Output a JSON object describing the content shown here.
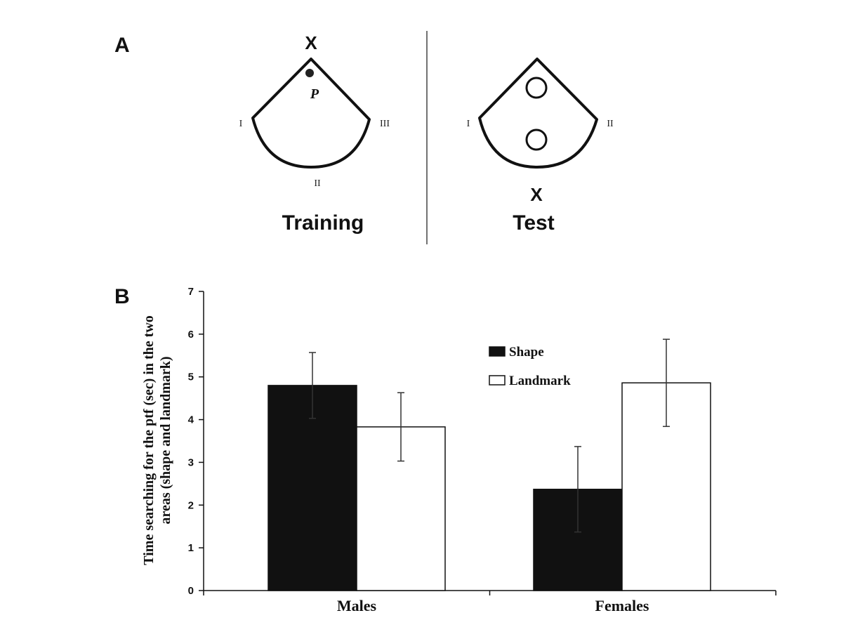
{
  "panel_a": {
    "label": "A",
    "training": {
      "caption": "Training",
      "x_marker": "X",
      "platform_label": "P",
      "side_labels": [
        "I",
        "II",
        "III"
      ]
    },
    "test": {
      "caption": "Test",
      "x_marker": "X",
      "side_labels": [
        "I",
        "II"
      ]
    }
  },
  "panel_b": {
    "label": "B"
  },
  "chart_data": {
    "type": "bar",
    "categories": [
      "Males",
      "Females"
    ],
    "series": [
      {
        "name": "Shape",
        "values": [
          4.8,
          2.37
        ],
        "error": [
          0.77,
          1.0
        ],
        "color": "#111111"
      },
      {
        "name": "Landmark",
        "values": [
          3.83,
          4.86
        ],
        "error": [
          0.8,
          1.02
        ],
        "color": "#ffffff"
      }
    ],
    "title": "",
    "xlabel": "",
    "ylabel": "Time searching for the ptf (sec) in the two areas (shape and landmark)",
    "ylabel_lines": [
      "Time searching for the ptf (sec) in the two",
      "areas (shape and landmark)"
    ],
    "ylim": [
      0,
      7
    ],
    "yticks": [
      0,
      1,
      2,
      3,
      4,
      5,
      6,
      7
    ],
    "grid": false,
    "legend": "top-right"
  }
}
